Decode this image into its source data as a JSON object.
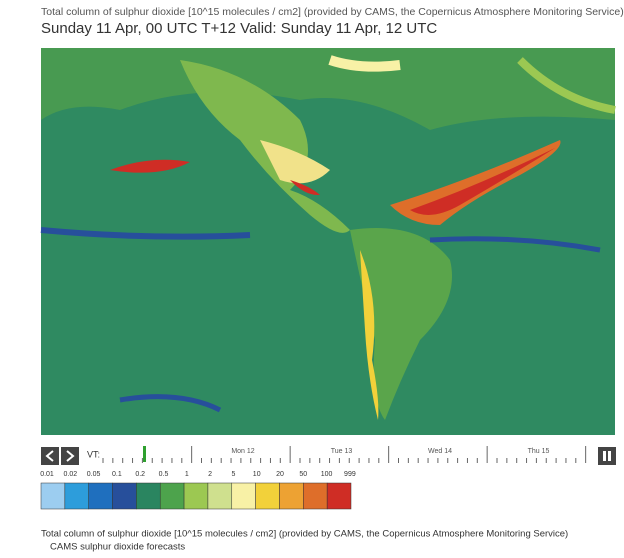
{
  "header": {
    "title": "Total column of sulphur dioxide [10^15 molecules / cm2] (provided by CAMS, the Copernicus Atmosphere Monitoring Service)",
    "subtitle": "Sunday 11 Apr, 00 UTC T+12 Valid: Sunday 11 Apr, 12 UTC"
  },
  "timeline": {
    "label": "VT:",
    "days": [
      "Mon 12",
      "Tue 13",
      "Wed 14",
      "Thu 15"
    ]
  },
  "legend": {
    "labels": [
      0.01,
      0.02,
      0.05,
      0.1,
      0.2,
      0.5,
      1,
      2,
      5,
      10,
      20,
      50,
      100,
      999
    ],
    "colors": [
      "#9ccdf0",
      "#2d9ddb",
      "#1f6fbe",
      "#274f9b",
      "#2a8560",
      "#4da34c",
      "#9cc852",
      "#cfe08e",
      "#f8f1a6",
      "#f2d13a",
      "#eda233",
      "#de6e2a",
      "#cf2d25",
      "#9b111b"
    ]
  },
  "footer": {
    "line1": "Total column of sulphur dioxide [10^15 molecules / cm2] (provided by CAMS, the Copernicus Atmosphere Monitoring Service)",
    "line2": "CAMS sulphur dioxide forecasts"
  }
}
